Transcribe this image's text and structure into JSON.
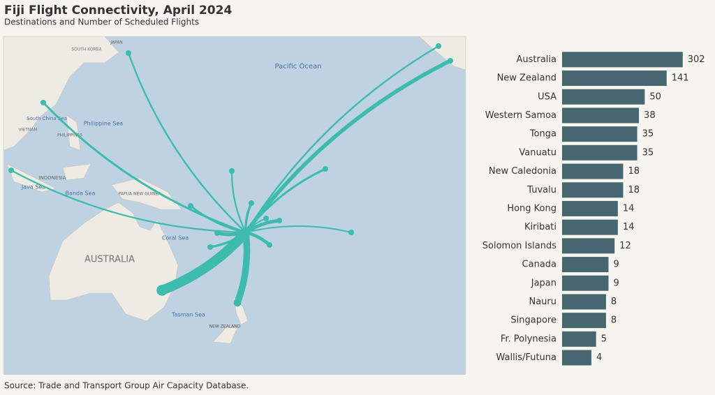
{
  "chart_data": {
    "type": "bar",
    "orientation": "horizontal",
    "title": "Fiji Flight Connectivity, April 2024",
    "subtitle": "Destinations and Number of Scheduled Flights",
    "source": "Source: Trade and Transport Group Air Capacity Database.",
    "categories": [
      "Australia",
      "New Zealand",
      "USA",
      "Western Samoa",
      "Tonga",
      "Vanuatu",
      "New Caledonia",
      "Tuvalu",
      "Hong Kong",
      "Kiribati",
      "Solomon Islands",
      "Canada",
      "Japan",
      "Nauru",
      "Singapore",
      "Fr. Polynesia",
      "Wallis/Futuna"
    ],
    "values": [
      302,
      141,
      50,
      38,
      35,
      35,
      18,
      18,
      14,
      14,
      12,
      9,
      9,
      8,
      8,
      5,
      4
    ],
    "color": "#466770",
    "route_color": "#3dbcae",
    "xlim": [
      1,
      1000
    ],
    "log": true
  },
  "map": {
    "labels": [
      "Pacific Ocean",
      "Philippine Sea",
      "South China Sea",
      "Java Sea",
      "Banda Sea",
      "Coral Sea",
      "Tasman Sea",
      "AUSTRALIA",
      "NEW ZEALAND",
      "INDONESIA",
      "PAPUA NEW GUINEA",
      "PHILIPPINES",
      "JAPAN",
      "SOUTH KOREA",
      "VIETNAM"
    ]
  }
}
